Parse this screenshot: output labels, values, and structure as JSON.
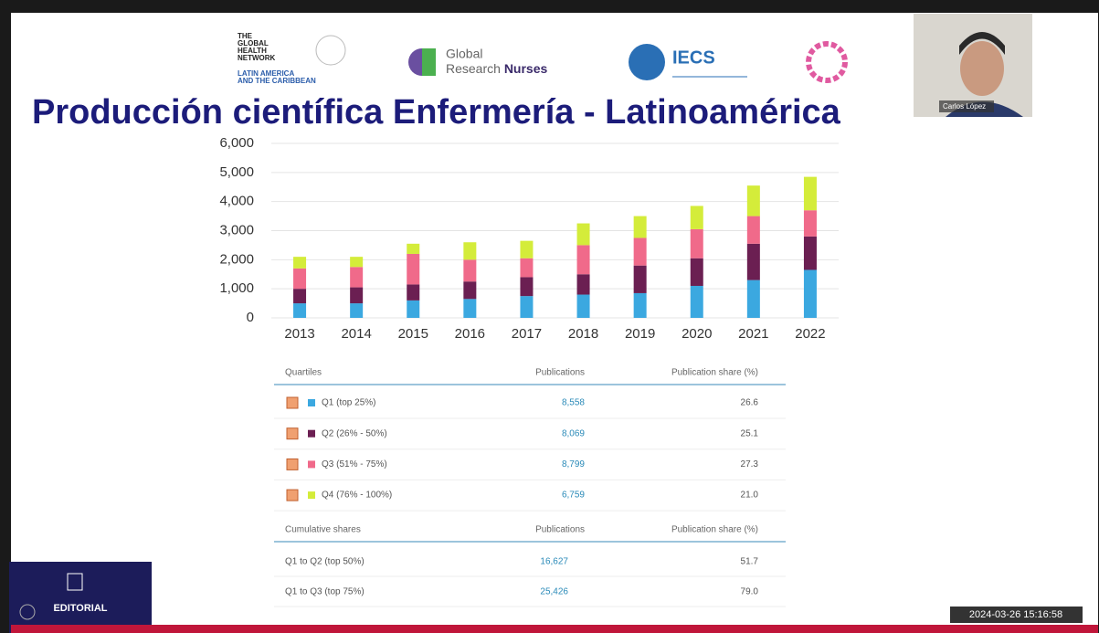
{
  "logos": {
    "network": [
      "THE",
      "GLOBAL",
      "HEALTH",
      "NETWORK",
      "LATIN AMERICA",
      "AND THE CARIBBEAN"
    ],
    "nurses": [
      "Global",
      "Research",
      "Nurses"
    ],
    "iecs": "IECS"
  },
  "slide_title": "Producción científica Enfermería - Latinoamérica",
  "chart_data": {
    "type": "bar",
    "stacked": true,
    "categories": [
      "2013",
      "2014",
      "2015",
      "2016",
      "2017",
      "2018",
      "2019",
      "2020",
      "2021",
      "2022"
    ],
    "series": [
      {
        "name": "Q1 (top 25%)",
        "color": "#3ba8e0",
        "values": [
          500,
          500,
          600,
          650,
          750,
          800,
          850,
          1100,
          1300,
          1650
        ]
      },
      {
        "name": "Q2 (26% - 50%)",
        "color": "#6b1f52",
        "values": [
          500,
          550,
          550,
          600,
          650,
          700,
          950,
          950,
          1250,
          1150
        ]
      },
      {
        "name": "Q3 (51% - 75%)",
        "color": "#f06a8a",
        "values": [
          700,
          700,
          1050,
          750,
          650,
          1000,
          950,
          1000,
          950,
          900
        ]
      },
      {
        "name": "Q4 (76% - 100%)",
        "color": "#d4ec3a",
        "values": [
          400,
          350,
          350,
          600,
          600,
          750,
          750,
          800,
          1050,
          1150
        ]
      }
    ],
    "ylim": [
      0,
      6000
    ],
    "yticks": [
      0,
      {
        "value": 1000,
        "label": "1,000"
      },
      {
        "value": 2000,
        "label": "2,000"
      },
      {
        "value": 3000,
        "label": "3,000"
      },
      {
        "value": 4000,
        "label": "4,000"
      },
      {
        "value": 5000,
        "label": "5,000"
      },
      {
        "value": 6000,
        "label": "6,000"
      }
    ],
    "grid": true
  },
  "table": {
    "header": [
      "Quartiles",
      "Publications",
      "Publication share (%)"
    ],
    "rows": [
      [
        "8,558",
        "26.6"
      ],
      [
        "8,069",
        "25.1"
      ],
      [
        "8,799",
        "27.3"
      ],
      [
        "6,759",
        "21.0"
      ]
    ],
    "cumulative_header": [
      "Cumulative shares",
      "Publications",
      "Publication share (%)"
    ],
    "cumulative_rows": [
      [
        "Q1 to Q2 (top 50%)",
        "16,627",
        "51.7"
      ],
      [
        "Q1 to Q3 (top 75%)",
        "25,426",
        "79.0"
      ]
    ]
  },
  "webcam_name": "Carlos López",
  "editorial": "EDITORIAL",
  "timestamp": "2024-03-26 15:16:58"
}
